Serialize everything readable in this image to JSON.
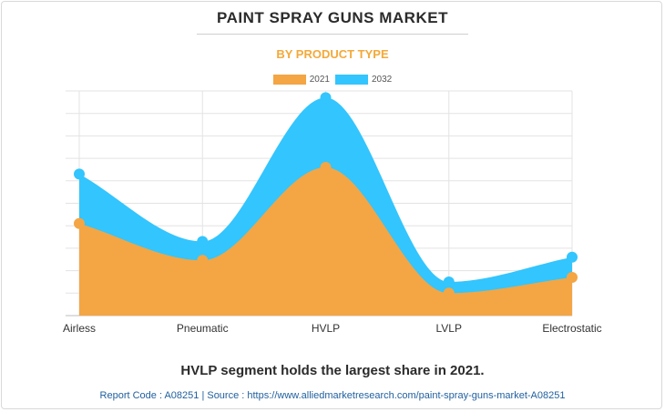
{
  "page": {
    "title": "PAINT SPRAY GUNS MARKET",
    "subtitle": "BY PRODUCT TYPE",
    "headline": "HVLP segment holds the largest share in 2021.",
    "source": "Report Code : A08251  |  Source : https://www.alliedmarketresearch.com/paint-spray-guns-market-A08251"
  },
  "colors": {
    "series_2021": "#f4a544",
    "series_2032": "#33c5fd",
    "grid": "#e3e3e3",
    "subtitle": "#f4a939"
  },
  "chart_data": {
    "type": "area",
    "title": "PAINT SPRAY GUNS MARKET",
    "subtitle": "BY PRODUCT TYPE",
    "categories": [
      "Airless",
      "Pneumatic",
      "HVLP",
      "LVLP",
      "Electrostatic"
    ],
    "series": [
      {
        "name": "2021",
        "values": [
          20.5,
          12.3,
          33.0,
          5.0,
          8.5
        ]
      },
      {
        "name": "2032",
        "values": [
          31.5,
          16.5,
          48.5,
          7.5,
          13.0
        ]
      }
    ],
    "ylim": [
      0,
      50
    ],
    "grid": true,
    "legend": "top-center",
    "stacked": false
  }
}
